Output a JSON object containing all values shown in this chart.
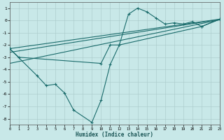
{
  "xlabel": "Humidex (Indice chaleur)",
  "bg_color": "#c8e8e8",
  "line_color": "#1a6b6b",
  "xlim": [
    0,
    23
  ],
  "ylim": [
    -8.5,
    1.5
  ],
  "line1_x": [
    0,
    1,
    10,
    11,
    12,
    21,
    23
  ],
  "line1_y": [
    -2.3,
    -3.0,
    -3.5,
    -2.0,
    -2.0,
    -0.5,
    0.1
  ],
  "line2_x": [
    0,
    3,
    4,
    5,
    6,
    7,
    9,
    10,
    11,
    12,
    13,
    14,
    15,
    16,
    17,
    18,
    19,
    20,
    21,
    23
  ],
  "line2_y": [
    -2.3,
    -4.5,
    -5.3,
    -5.2,
    -5.9,
    -7.3,
    -8.3,
    -6.5,
    -3.6,
    -2.0,
    0.5,
    1.0,
    0.7,
    0.2,
    -0.3,
    -0.2,
    -0.3,
    -0.1,
    -0.5,
    0.1
  ],
  "trend1_x": [
    0,
    23
  ],
  "trend1_y": [
    -2.3,
    0.1
  ],
  "trend2_x": [
    0,
    23
  ],
  "trend2_y": [
    -3.5,
    0.05
  ],
  "trend3_x": [
    0,
    23
  ],
  "trend3_y": [
    -2.6,
    0.08
  ],
  "yticks": [
    1,
    0,
    -1,
    -2,
    -3,
    -4,
    -5,
    -6,
    -7,
    -8
  ],
  "xticks": [
    0,
    1,
    2,
    3,
    4,
    5,
    6,
    7,
    8,
    9,
    10,
    11,
    12,
    13,
    14,
    15,
    16,
    17,
    18,
    19,
    20,
    21,
    22,
    23
  ]
}
